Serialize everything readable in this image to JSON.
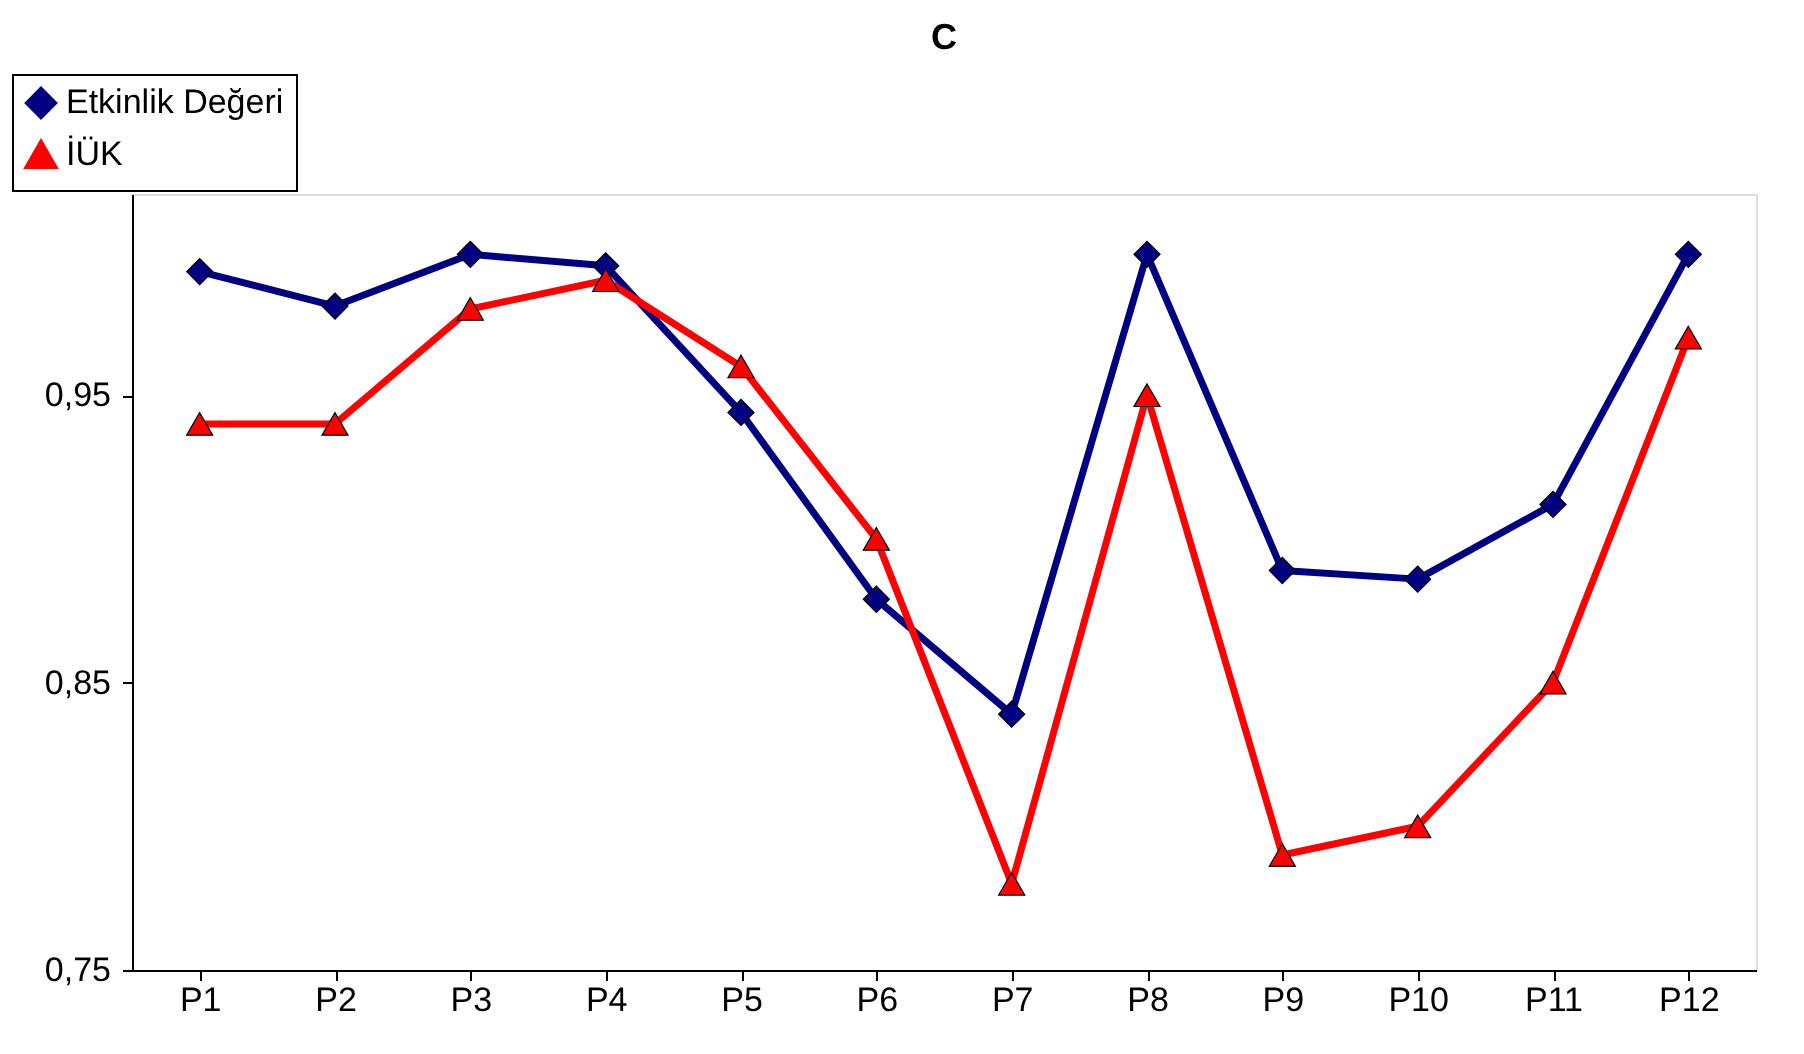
{
  "chart_data": {
    "type": "line",
    "title": "C",
    "categories": [
      "P1",
      "P2",
      "P3",
      "P4",
      "P5",
      "P6",
      "P7",
      "P8",
      "P9",
      "P10",
      "P11",
      "P12"
    ],
    "series": [
      {
        "name": "Etkinlik Değeri",
        "color": "#000080",
        "marker": "diamond",
        "values": [
          0.993,
          0.981,
          0.999,
          0.995,
          0.944,
          0.879,
          0.839,
          0.999,
          0.889,
          0.886,
          0.912,
          0.999
        ]
      },
      {
        "name": "İÜK",
        "color": "#ff0000",
        "marker": "triangle",
        "values": [
          0.94,
          0.94,
          0.98,
          0.99,
          0.96,
          0.9,
          0.78,
          0.95,
          0.79,
          0.8,
          0.85,
          0.97
        ]
      }
    ],
    "ylim": [
      0.75,
      1.02
    ],
    "yticks": [
      {
        "value": 0.75,
        "label": "0,75"
      },
      {
        "value": 0.85,
        "label": "0,85"
      },
      {
        "value": 0.95,
        "label": "0,95"
      }
    ],
    "grid": false,
    "legend": "top left",
    "line_style": "solid"
  }
}
